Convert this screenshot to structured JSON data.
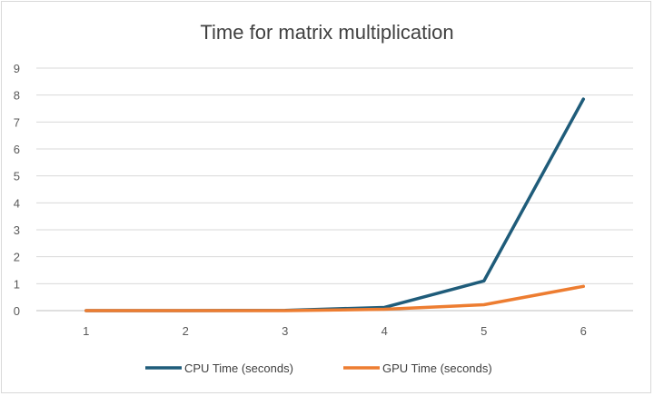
{
  "chart_data": {
    "type": "line",
    "title": "Time for matrix multiplication",
    "xlabel": "",
    "ylabel": "",
    "x": [
      1,
      2,
      3,
      4,
      5,
      6
    ],
    "ylim": [
      0,
      9
    ],
    "yticks": [
      0,
      1,
      2,
      3,
      4,
      5,
      6,
      7,
      8,
      9
    ],
    "grid": true,
    "legend_position": "bottom",
    "series": [
      {
        "name": "CPU Time (seconds)",
        "color": "#1f5c7a",
        "values": [
          0.0,
          0.0,
          0.01,
          0.12,
          1.1,
          7.85
        ]
      },
      {
        "name": "GPU Time (seconds)",
        "color": "#ed7d31",
        "values": [
          0.0,
          0.0,
          0.0,
          0.05,
          0.22,
          0.9
        ]
      }
    ]
  }
}
